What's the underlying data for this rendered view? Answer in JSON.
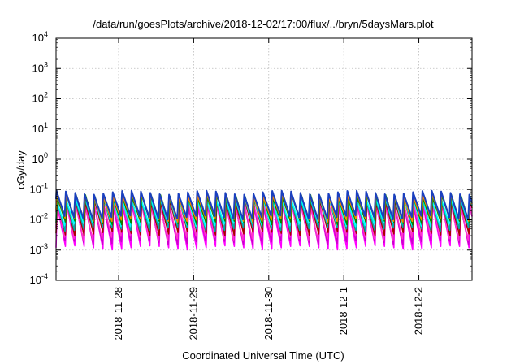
{
  "chart_data": {
    "type": "line",
    "title": "/data/run/goesPlots/archive/2018-12-02/17:00/flux/../bryn/5daysMars.plot",
    "xlabel": "Coordinated Universal Time (UTC)",
    "ylabel": "cGy/day",
    "y_scale": "log",
    "ylim": [
      0.0001,
      10000
    ],
    "y_ticks": [
      {
        "base": "10",
        "exp": "-4"
      },
      {
        "base": "10",
        "exp": "-3"
      },
      {
        "base": "10",
        "exp": "-2"
      },
      {
        "base": "10",
        "exp": "-1"
      },
      {
        "base": "10",
        "exp": "0"
      },
      {
        "base": "10",
        "exp": "1"
      },
      {
        "base": "10",
        "exp": "2"
      },
      {
        "base": "10",
        "exp": "3"
      },
      {
        "base": "10",
        "exp": "4"
      }
    ],
    "xlim": [
      "2018-11-27T04:00",
      "2018-12-02T17:00"
    ],
    "x_ticks": [
      "2018-11-28",
      "2018-11-29",
      "2018-11-30",
      "2018-12-1",
      "2018-12-2"
    ],
    "grid": true,
    "pattern": {
      "description_period_hours": 3,
      "peak_value": 0.08,
      "trough_values_top_series": 0.01,
      "trough_values_bottom_series": 0.0012
    },
    "series": [
      {
        "color": "#ff00ff",
        "peak": 0.03,
        "trough": 0.0012
      },
      {
        "color": "#cc00cc",
        "peak": 0.035,
        "trough": 0.0018
      },
      {
        "color": "#ff33cc",
        "peak": 0.04,
        "trough": 0.0025
      },
      {
        "color": "#aa0000",
        "peak": 0.045,
        "trough": 0.0035
      },
      {
        "color": "#00aaaa",
        "peak": 0.05,
        "trough": 0.005
      },
      {
        "color": "#00ffff",
        "peak": 0.055,
        "trough": 0.007
      },
      {
        "color": "#008800",
        "peak": 0.06,
        "trough": 0.008
      },
      {
        "color": "#ff8800",
        "peak": 0.065,
        "trough": 0.01
      },
      {
        "color": "#1a3fbf",
        "peak": 0.08,
        "trough": 0.012
      }
    ]
  }
}
